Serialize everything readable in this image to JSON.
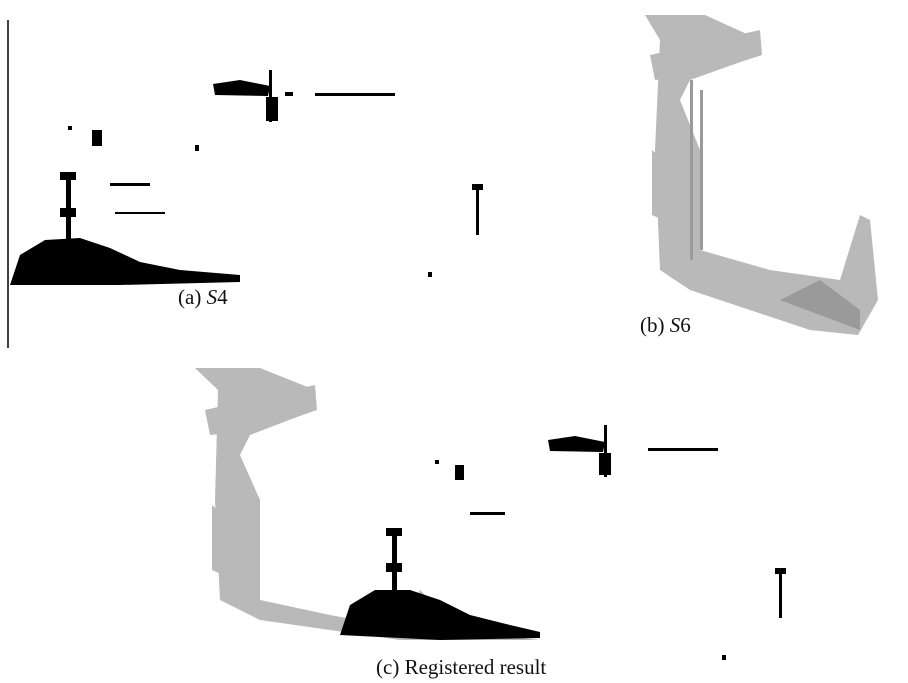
{
  "panels": [
    {
      "label": "(a)",
      "symbol": "S",
      "number": "4"
    },
    {
      "label": "(b)",
      "symbol": "S",
      "number": "6"
    },
    {
      "label": "(c)",
      "text": "Registered result"
    }
  ]
}
